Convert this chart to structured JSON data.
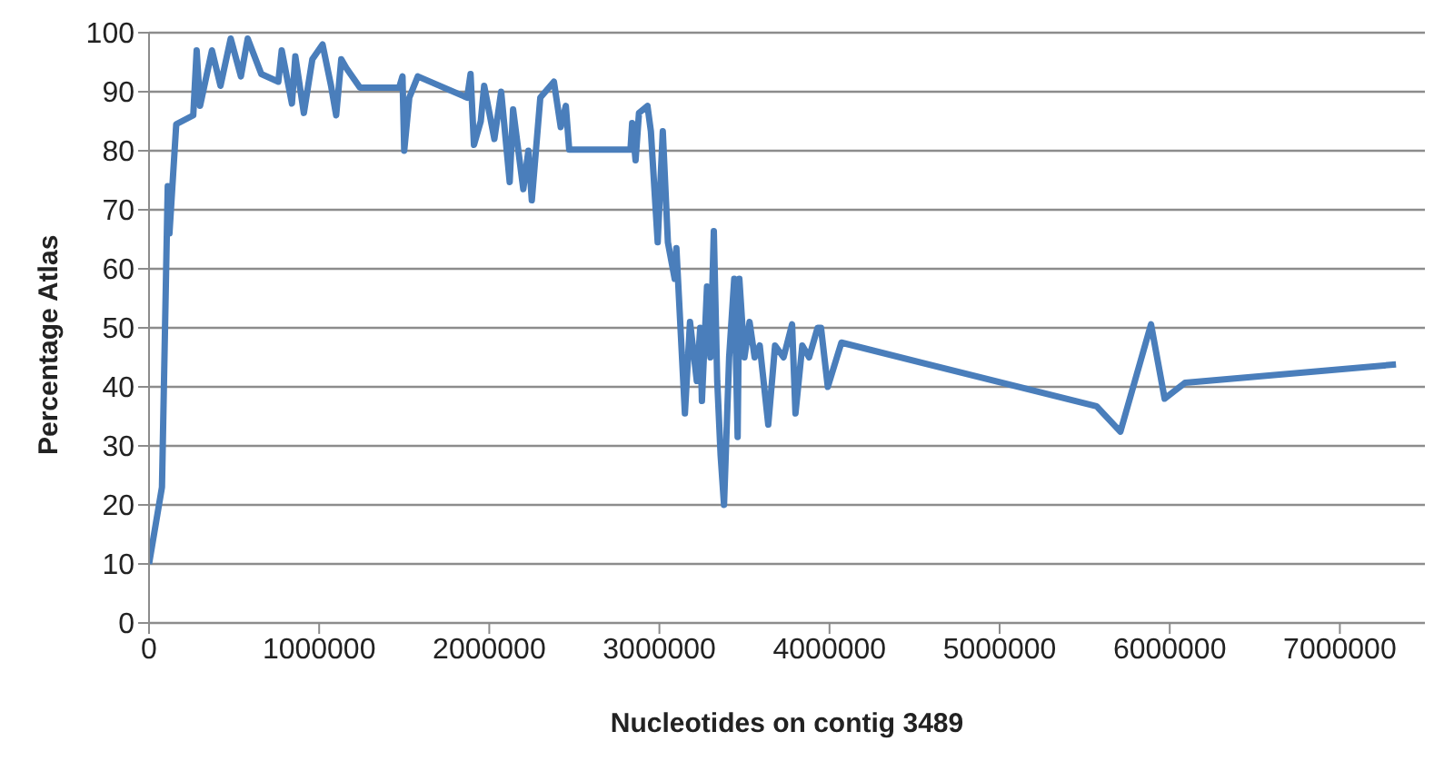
{
  "chart_data": {
    "type": "line",
    "xlabel": "Nucleotides on contig 3489",
    "ylabel": "Percentage Atlas",
    "xlim": [
      0,
      7500000
    ],
    "xticks": [
      0,
      1000000,
      2000000,
      3000000,
      4000000,
      5000000,
      6000000,
      7000000
    ],
    "ylim": [
      0,
      100
    ],
    "yticks": [
      0,
      10,
      20,
      30,
      40,
      50,
      60,
      70,
      80,
      90,
      100
    ],
    "grid": "y",
    "marker": "none",
    "line_style": "solid",
    "legend": false,
    "series": [
      {
        "color": "#4a7ebb",
        "x": [
          0,
          76000,
          100000,
          110000,
          120000,
          160000,
          260000,
          280000,
          300000,
          370000,
          420000,
          480000,
          540000,
          580000,
          660000,
          760000,
          780000,
          840000,
          860000,
          910000,
          960000,
          1020000,
          1070000,
          1100000,
          1130000,
          1160000,
          1240000,
          1470000,
          1490000,
          1500000,
          1530000,
          1580000,
          1870000,
          1890000,
          1910000,
          1950000,
          1970000,
          2030000,
          2070000,
          2120000,
          2140000,
          2200000,
          2230000,
          2250000,
          2300000,
          2380000,
          2420000,
          2450000,
          2470000,
          2830000,
          2840000,
          2860000,
          2880000,
          2930000,
          2950000,
          2990000,
          3020000,
          3050000,
          3090000,
          3100000,
          3150000,
          3180000,
          3220000,
          3240000,
          3250000,
          3280000,
          3300000,
          3320000,
          3340000,
          3360000,
          3380000,
          3410000,
          3440000,
          3460000,
          3470000,
          3500000,
          3530000,
          3560000,
          3590000,
          3640000,
          3680000,
          3730000,
          3780000,
          3800000,
          3840000,
          3880000,
          3930000,
          3950000,
          3990000,
          4070000,
          5570000,
          5710000,
          5890000,
          5970000,
          6090000,
          7330000
        ],
        "values": [
          10,
          23,
          59,
          74,
          66,
          84.5,
          86,
          97,
          87.6,
          97,
          91,
          99,
          92.6,
          99,
          93,
          91.7,
          97,
          88,
          96,
          86.4,
          95.5,
          98,
          91,
          86,
          95.5,
          94,
          90.7,
          90.7,
          92.6,
          80,
          89,
          92.6,
          89,
          93,
          81,
          85,
          91,
          82,
          90,
          74.7,
          87,
          73.5,
          80,
          71.6,
          89,
          91.7,
          84,
          87.6,
          80.2,
          80.2,
          84.7,
          78.4,
          86.4,
          87.6,
          83.3,
          64.5,
          83.3,
          64.5,
          58.3,
          63.5,
          35.5,
          51,
          41,
          50,
          37.6,
          57,
          45,
          66.4,
          41,
          28.4,
          20,
          45,
          58.3,
          31.5,
          58.3,
          45,
          51,
          45,
          47,
          33.6,
          47,
          45,
          50.6,
          35.5,
          47,
          45,
          50,
          50,
          40,
          47.5,
          36.7,
          32.4,
          50.6,
          38,
          40.7,
          43.8
        ]
      }
    ]
  }
}
